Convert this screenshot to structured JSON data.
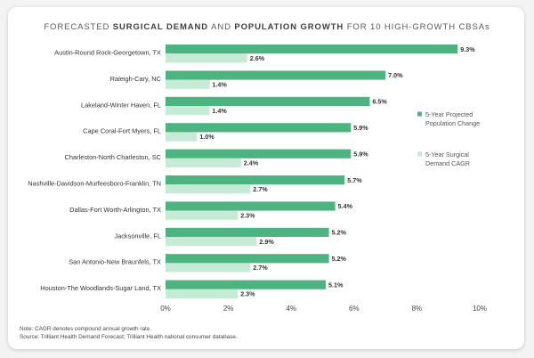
{
  "chart_data": {
    "type": "bar",
    "orientation": "horizontal",
    "title": "FORECASTED SURGICAL DEMAND AND POPULATION GROWTH FOR 10 HIGH-GROWTH CBSAs",
    "title_parts": [
      {
        "text": "FORECASTED ",
        "bold": false
      },
      {
        "text": "SURGICAL DEMAND",
        "bold": true
      },
      {
        "text": " AND ",
        "bold": false
      },
      {
        "text": "POPULATION GROWTH",
        "bold": true
      },
      {
        "text": " FOR 10 HIGH-GROWTH CBSAs",
        "bold": false
      }
    ],
    "categories": [
      "Austin-Round Rock-Georgetown, TX",
      "Raleigh-Cary, NC",
      "Lakeland-Winter Haven, FL",
      "Cape Coral-Fort Myers, FL",
      "Charleston-North Charleston, SC",
      "Nashville-Davidson-Murfeesboro-Franklin, TN",
      "Dallas-Fort Worth-Arlington, TX",
      "Jacksonville, FL",
      "San Antonio-New Braunfels, TX",
      "Houston-The Woodlands-Sugar Land, TX"
    ],
    "series": [
      {
        "name": "5-Year Projected Population Change",
        "legend_lines": [
          "5-Year Projected",
          "Population Change"
        ],
        "color": "#4db380",
        "values": [
          9.3,
          7.0,
          6.5,
          5.9,
          5.9,
          5.7,
          5.4,
          5.2,
          5.2,
          5.1
        ],
        "labels": [
          "9.3%",
          "7.0%",
          "6.5%",
          "5.9%",
          "5.9%",
          "5.7%",
          "5.4%",
          "5.2%",
          "5.2%",
          "5.1%"
        ]
      },
      {
        "name": "5-Year Surgical Demand CAGR",
        "legend_lines": [
          "5-Year Surgical",
          "Demand CAGR"
        ],
        "color": "#c5ead5",
        "values": [
          2.6,
          1.4,
          1.4,
          1.0,
          2.4,
          2.7,
          2.3,
          2.9,
          2.7,
          2.3
        ],
        "labels": [
          "2.6%",
          "1.4%",
          "1.4%",
          "1.0%",
          "2.4%",
          "2.7%",
          "2.3%",
          "2.9%",
          "2.7%",
          "2.3%"
        ]
      }
    ],
    "xlim": [
      0,
      10
    ],
    "xticks": [
      0,
      2,
      4,
      6,
      8,
      10
    ],
    "xtick_labels": [
      "0%",
      "2%",
      "4%",
      "6%",
      "8%",
      "10%"
    ],
    "xlabel": "",
    "ylabel": "",
    "grid": false,
    "legend_position": "right"
  },
  "notes": [
    "Note: CAGR denotes compound annual growth rate.",
    "Source: Trilliant Health Demand Forecast; Trilliant Health national consumer database."
  ]
}
